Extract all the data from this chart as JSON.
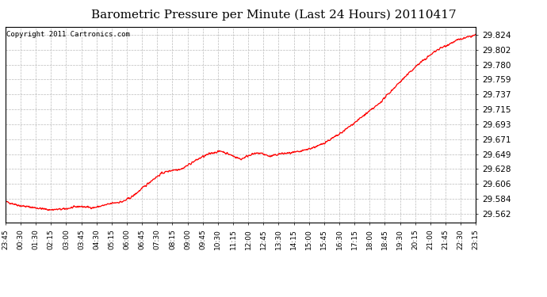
{
  "title": "Barometric Pressure per Minute (Last 24 Hours) 20110417",
  "copyright": "Copyright 2011 Cartronics.com",
  "line_color": "#ff0000",
  "background_color": "#ffffff",
  "grid_color": "#bbbbbb",
  "yticks": [
    29.562,
    29.584,
    29.606,
    29.628,
    29.649,
    29.671,
    29.693,
    29.715,
    29.737,
    29.759,
    29.78,
    29.802,
    29.824
  ],
  "ylim": [
    29.549,
    29.836
  ],
  "xtick_labels": [
    "23:45",
    "00:30",
    "01:30",
    "02:15",
    "03:00",
    "03:45",
    "04:30",
    "05:15",
    "06:00",
    "06:45",
    "07:30",
    "08:15",
    "09:00",
    "09:45",
    "10:30",
    "11:15",
    "12:00",
    "12:45",
    "13:30",
    "14:15",
    "15:00",
    "15:45",
    "16:30",
    "17:15",
    "18:00",
    "18:45",
    "19:30",
    "20:15",
    "21:00",
    "21:45",
    "22:30",
    "23:15"
  ],
  "title_fontsize": 11,
  "copyright_fontsize": 6.5,
  "tick_fontsize": 6.5,
  "ytick_fontsize": 7.5,
  "keypoints_x": [
    0,
    45,
    90,
    135,
    180,
    225,
    270,
    315,
    330,
    360,
    390,
    420,
    450,
    480,
    510,
    540,
    570,
    600,
    630,
    660,
    720,
    750,
    780,
    810,
    840,
    870,
    900,
    960,
    1020,
    1080,
    1140,
    1200,
    1260,
    1320,
    1380,
    1439
  ],
  "keypoints_y": [
    29.58,
    29.574,
    29.571,
    29.568,
    29.569,
    29.573,
    29.571,
    29.576,
    29.578,
    29.58,
    29.588,
    29.6,
    29.612,
    29.622,
    29.626,
    29.628,
    29.637,
    29.645,
    29.651,
    29.654,
    29.642,
    29.649,
    29.651,
    29.646,
    29.65,
    29.651,
    29.653,
    29.662,
    29.678,
    29.7,
    29.722,
    29.752,
    29.78,
    29.802,
    29.816,
    29.824
  ]
}
